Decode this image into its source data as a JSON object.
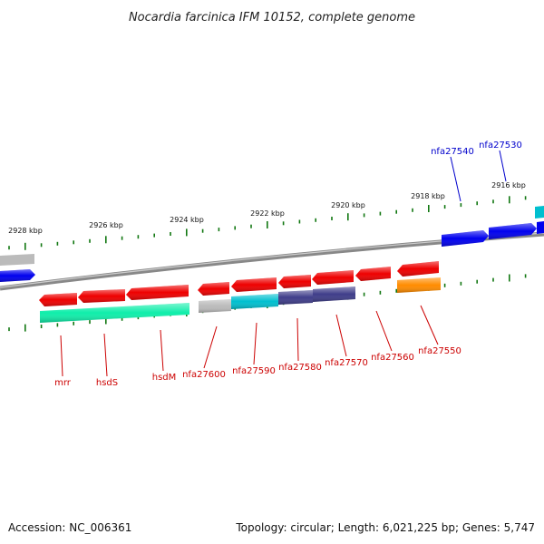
{
  "title": "Nocardia farcinica IFM 10152, complete genome",
  "footer": {
    "accession": "Accession: NC_006361",
    "summary": "Topology: circular; Length: 6,021,225 bp; Genes: 5,747"
  },
  "scale_labels": [
    "2928 kbp",
    "2926 kbp",
    "2924 kbp",
    "2922 kbp",
    "2920 kbp",
    "2918 kbp",
    "2916 kbp"
  ],
  "gene_labels_bottom": [
    "mrr",
    "hsdS",
    "hsdM",
    "nfa27600",
    "nfa27590",
    "nfa27580",
    "nfa27570",
    "nfa27560",
    "nfa27550"
  ],
  "gene_labels_top": [
    "nfa27540",
    "nfa27530"
  ],
  "colors": {
    "red": "#ee0000",
    "blue": "#0000ee",
    "cyan": "#00bfcf",
    "green": "#10eeaa",
    "navy": "#3f3d8a",
    "orange": "#ff8c00",
    "gray": "#bbbbbb",
    "backbone": "#888888",
    "tick": "#117711"
  }
}
